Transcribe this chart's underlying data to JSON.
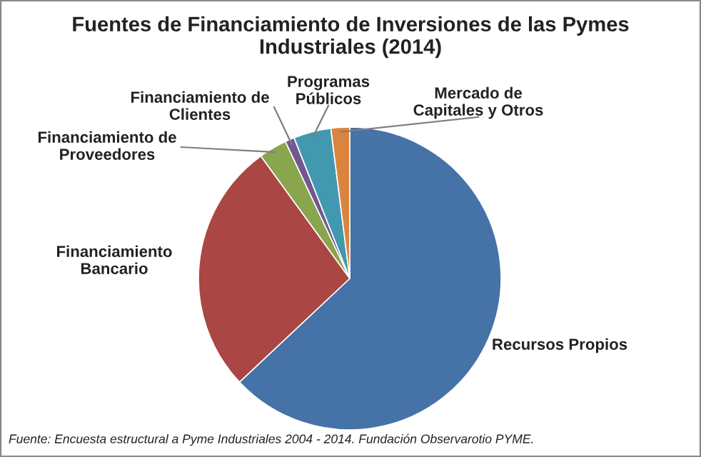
{
  "chart_data": {
    "type": "pie",
    "title": "Fuentes de Financiamiento de Inversiones de las Pymes\nIndustriales (2014)",
    "categories": [
      "Recursos Propios",
      "Financiamiento\nBancario",
      "Financiamiento de\nProveedores",
      "Financiamiento de\nClientes",
      "Programas\nPúblicos",
      "Mercado de\nCapitales y Otros"
    ],
    "values": [
      63,
      27,
      3,
      1,
      4,
      2
    ],
    "colors": [
      "#4572a7",
      "#aa4643",
      "#89a54e",
      "#71588f",
      "#4198af",
      "#db843d"
    ],
    "annotations": [
      "Fuente: Encuesta estructural a Pyme Industriales 2004 - 2014. Fundación Observarotio PYME."
    ],
    "legend": false
  }
}
